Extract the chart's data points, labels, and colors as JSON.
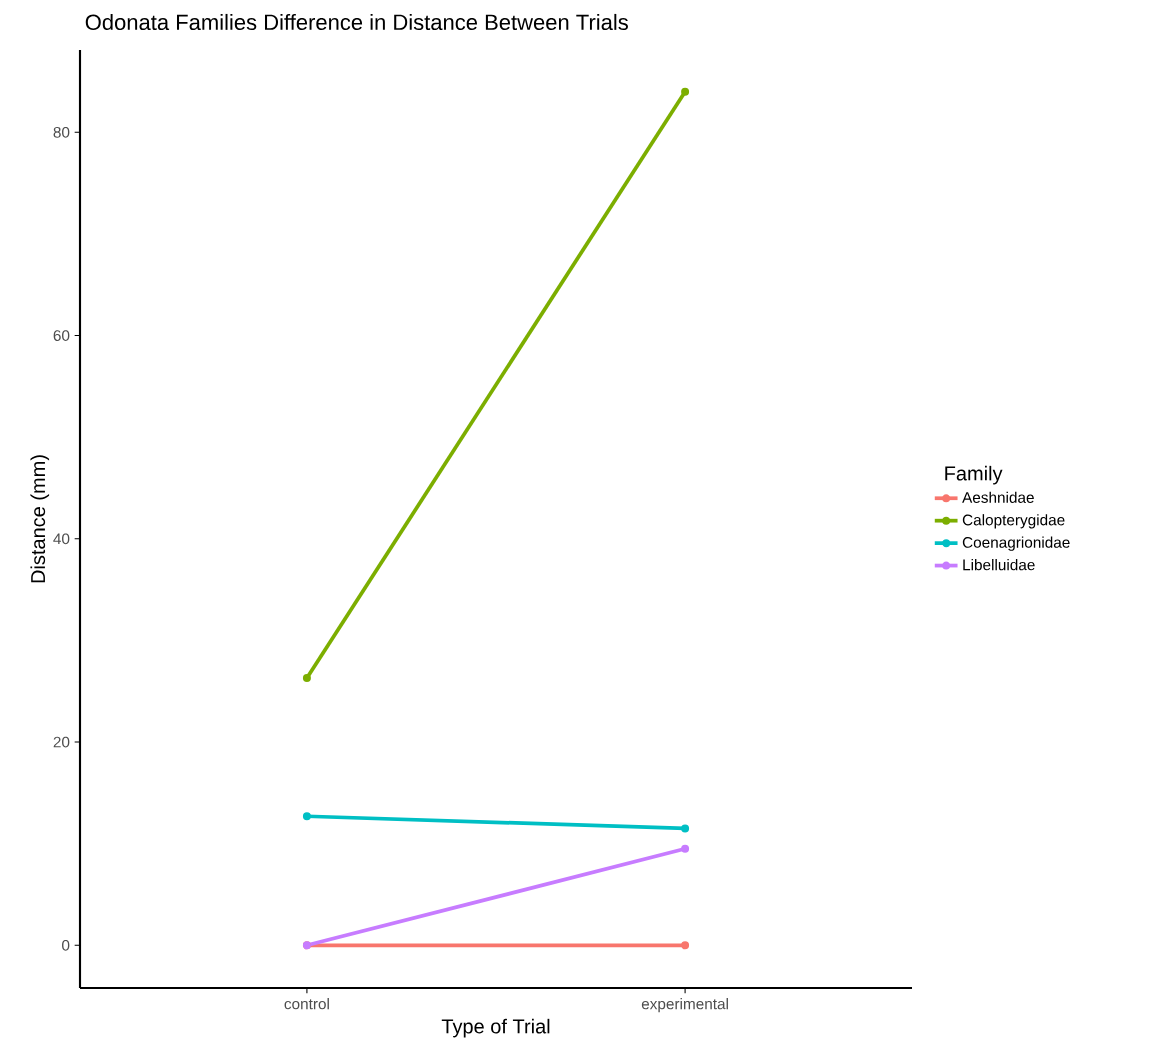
{
  "chart_data": {
    "type": "line",
    "title": "Odonata Families Difference in Distance Between Trials",
    "xlabel": "Type of Trial",
    "ylabel": "Distance (mm)",
    "legend_title": "Family",
    "categories": [
      "control",
      "experimental"
    ],
    "series": [
      {
        "name": "Aeshnidae",
        "color": "#F8766D",
        "values": [
          0,
          0
        ]
      },
      {
        "name": "Calopterygidae",
        "color": "#7CAE00",
        "values": [
          26.3,
          84.0
        ]
      },
      {
        "name": "Coenagrionidae",
        "color": "#00BFC4",
        "values": [
          12.7,
          11.5
        ]
      },
      {
        "name": "Libelluidae",
        "color": "#C77CFF",
        "values": [
          0,
          9.5
        ]
      }
    ],
    "ylim": [
      -4.2,
      88.1
    ],
    "yticks": [
      0,
      20,
      40,
      60,
      80
    ],
    "grid": false,
    "legend": "right",
    "marker": "circle",
    "line_style": "solid"
  }
}
